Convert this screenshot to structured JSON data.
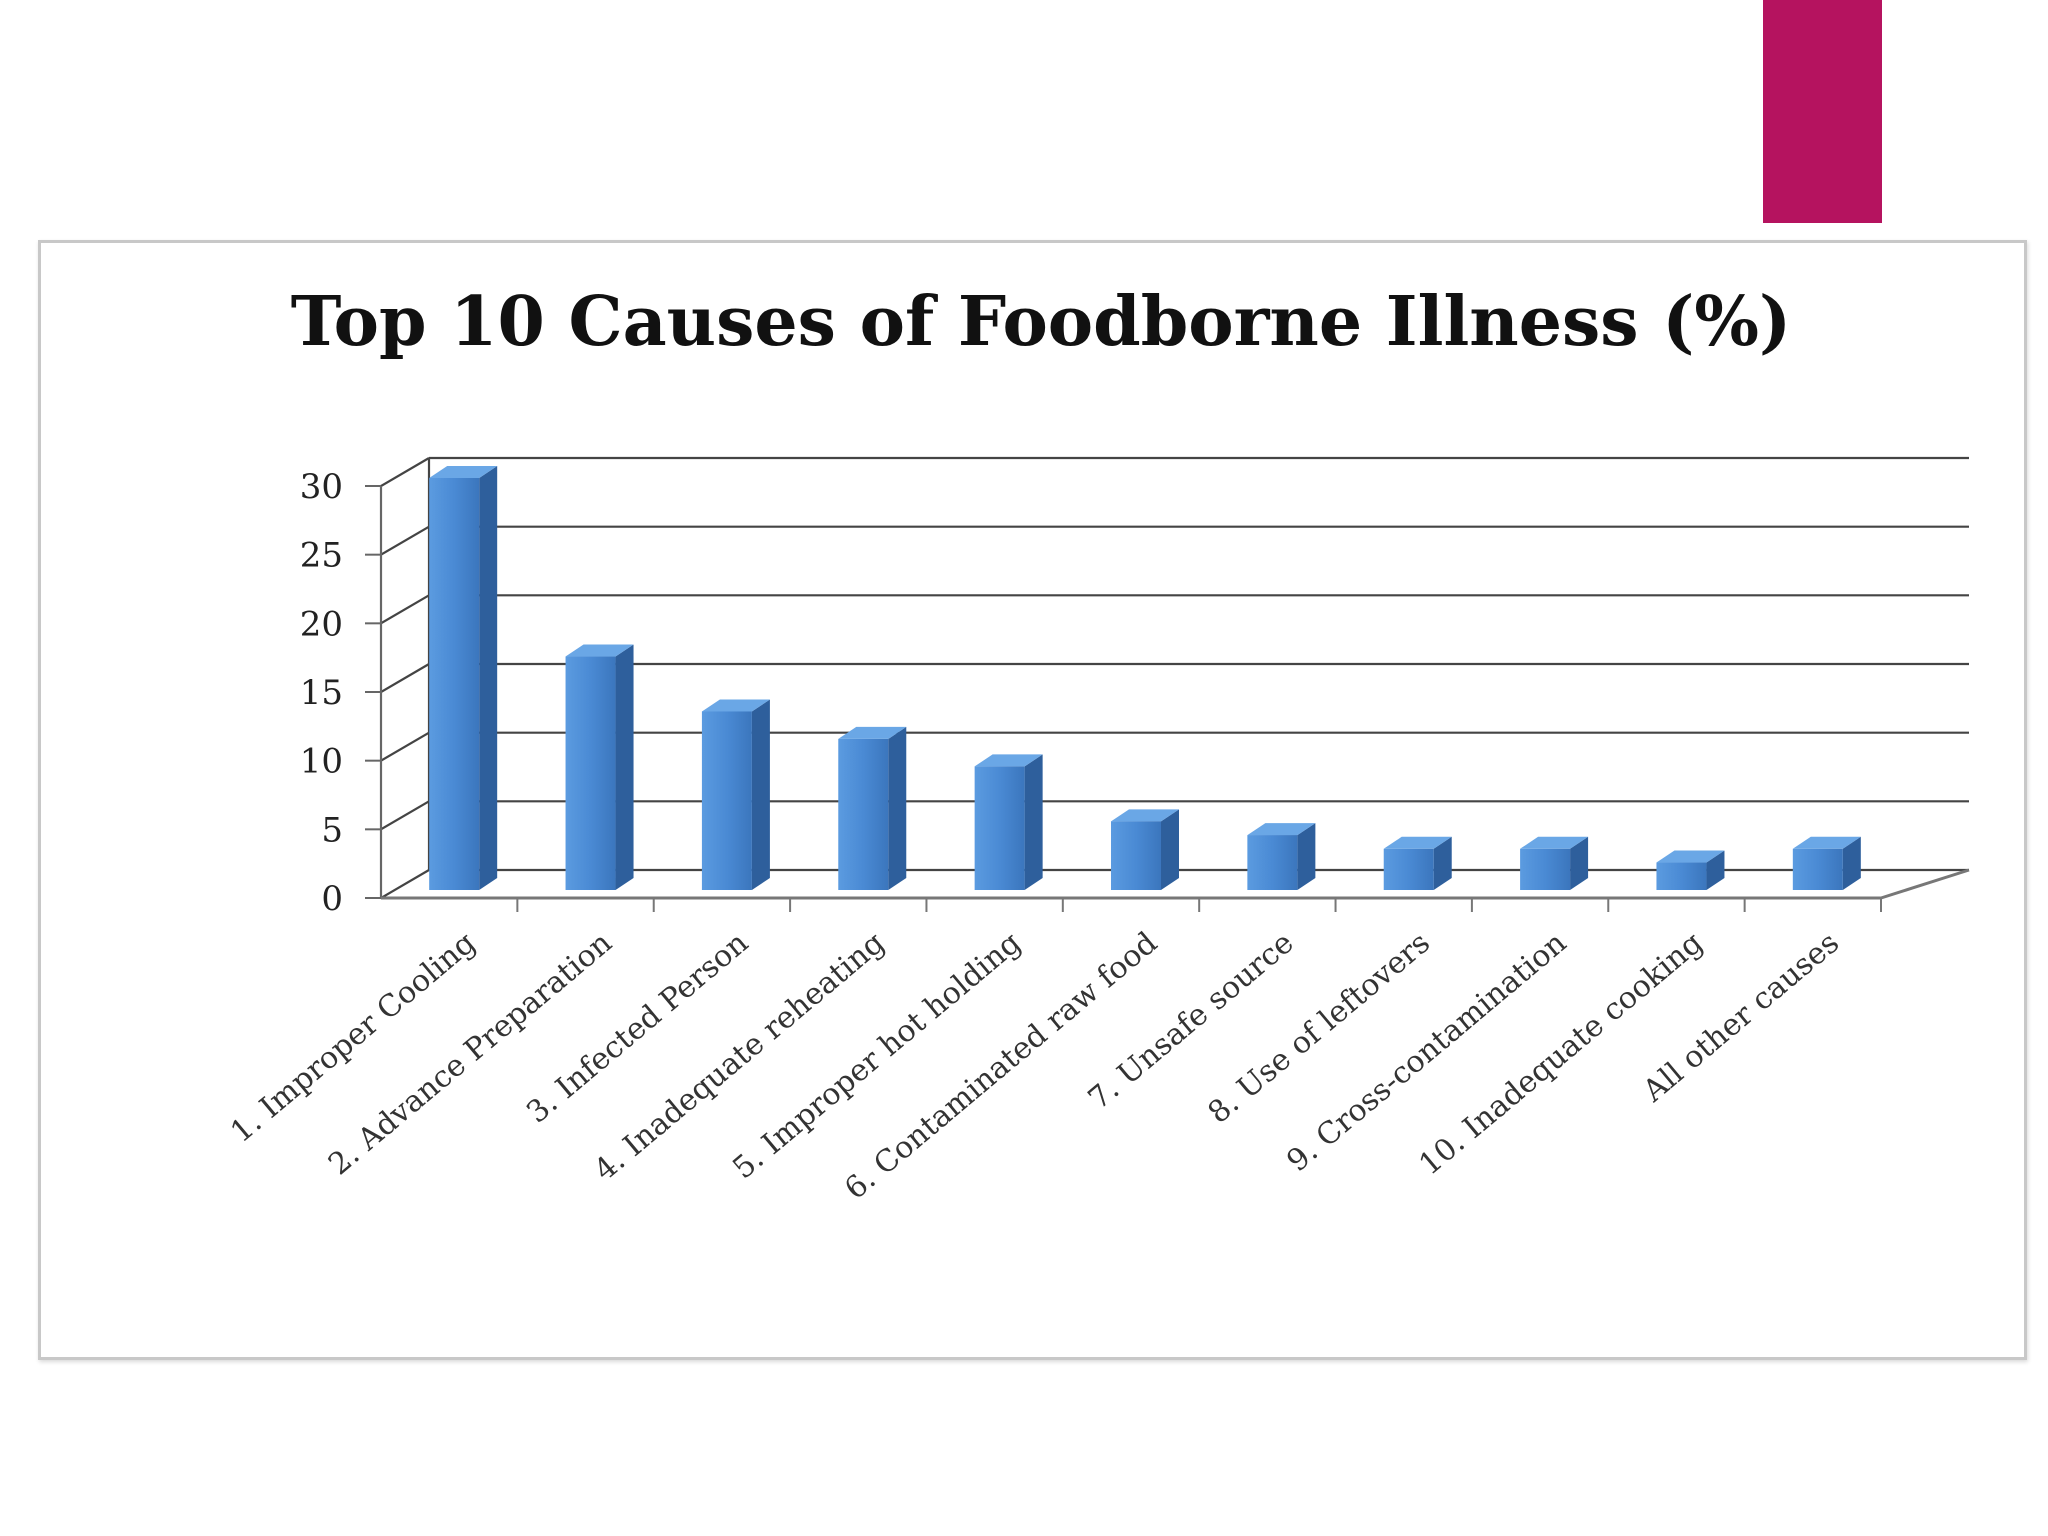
{
  "slide": {
    "accent_color": "#b5135f"
  },
  "chart_data": {
    "type": "bar",
    "title": "Top 10 Causes of Foodborne Illness (%)",
    "categories": [
      "1.  Improper Cooling",
      "2.  Advance Preparation",
      "3.  Infected Person",
      "4.  Inadequate reheating",
      "5.  Improper hot holding",
      "6.  Contaminated raw food",
      "7.  Unsafe source",
      "8.  Use of leftovers",
      "9.  Cross-contamination",
      "10. Inadequate cooking",
      "All other causes"
    ],
    "values": [
      30,
      17,
      13,
      11,
      9,
      5,
      4,
      3,
      3,
      2,
      3
    ],
    "ylim": [
      0,
      30
    ],
    "yticks": [
      0,
      5,
      10,
      15,
      20,
      25,
      30
    ],
    "xlabel": "",
    "ylabel": "",
    "grid": true,
    "legend": "none",
    "style": "3d-column",
    "bar_color": "#4a8ad4"
  }
}
